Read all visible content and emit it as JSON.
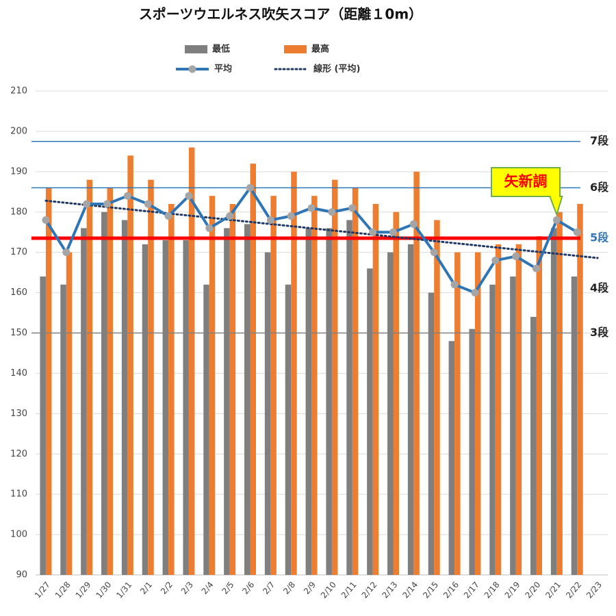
{
  "chart_data": {
    "type": "bar",
    "title": "スポーツウエルネス吹矢スコア（距離１0m）",
    "categories": [
      "1/27",
      "1/28",
      "1/29",
      "1/30",
      "1/31",
      "2/1",
      "2/2",
      "2/3",
      "2/4",
      "2/5",
      "2/6",
      "2/7",
      "2/8",
      "2/9",
      "2/10",
      "2/11",
      "2/12",
      "2/13",
      "2/14",
      "2/15",
      "2/16",
      "2/17",
      "2/18",
      "2/19",
      "2/20",
      "2/21",
      "2/22",
      "2/23"
    ],
    "series": [
      {
        "name": "最低",
        "type": "bar",
        "color": "#7f7f7f",
        "values": [
          164,
          162,
          176,
          180,
          178,
          172,
          173,
          173,
          162,
          176,
          177,
          170,
          162,
          176,
          176,
          178,
          166,
          170,
          172,
          160,
          148,
          151,
          162,
          164,
          154,
          176,
          164,
          null
        ]
      },
      {
        "name": "最高",
        "type": "bar",
        "color": "#ed7d31",
        "values": [
          186,
          170,
          188,
          186,
          194,
          188,
          182,
          196,
          184,
          182,
          192,
          184,
          190,
          184,
          188,
          186,
          182,
          180,
          190,
          178,
          170,
          170,
          172,
          172,
          174,
          180,
          182,
          null
        ]
      },
      {
        "name": "平均",
        "type": "line",
        "color": "#2e75b6",
        "marker_color": "#a5a5a5",
        "values": [
          178,
          170,
          182,
          182,
          184,
          182,
          179,
          184,
          176,
          179,
          186,
          178,
          179,
          181,
          180,
          181,
          175,
          175,
          177,
          170,
          162,
          160,
          168,
          169,
          166,
          178,
          175,
          null
        ]
      }
    ],
    "trend": {
      "name": "線形 (平均)",
      "color": "#1f3864",
      "start": 182.8,
      "end": 168.6
    },
    "reference_lines": [
      {
        "label": "7段",
        "value": 197.5,
        "color": "#2e75b6",
        "label_color": "#222222",
        "width": 1.5
      },
      {
        "label": "6段",
        "value": 186,
        "color": "#2e75b6",
        "label_color": "#222222",
        "width": 1.5
      },
      {
        "label": "5段",
        "value": 173.5,
        "color": "#ff0000",
        "label_color": "#2e75b6",
        "width": 5
      },
      {
        "label": "4段",
        "value": 161,
        "color": null,
        "label_color": "#222222",
        "width": 0
      },
      {
        "label": "3段",
        "value": 150,
        "color": "#808080",
        "label_color": "#222222",
        "width": 1.5
      }
    ],
    "annotation": {
      "text": "矢新調",
      "category": "2/21"
    },
    "ylim": [
      90,
      210
    ],
    "yticks": [
      90,
      100,
      110,
      120,
      130,
      140,
      150,
      160,
      170,
      180,
      190,
      200,
      210
    ],
    "grid": true
  }
}
